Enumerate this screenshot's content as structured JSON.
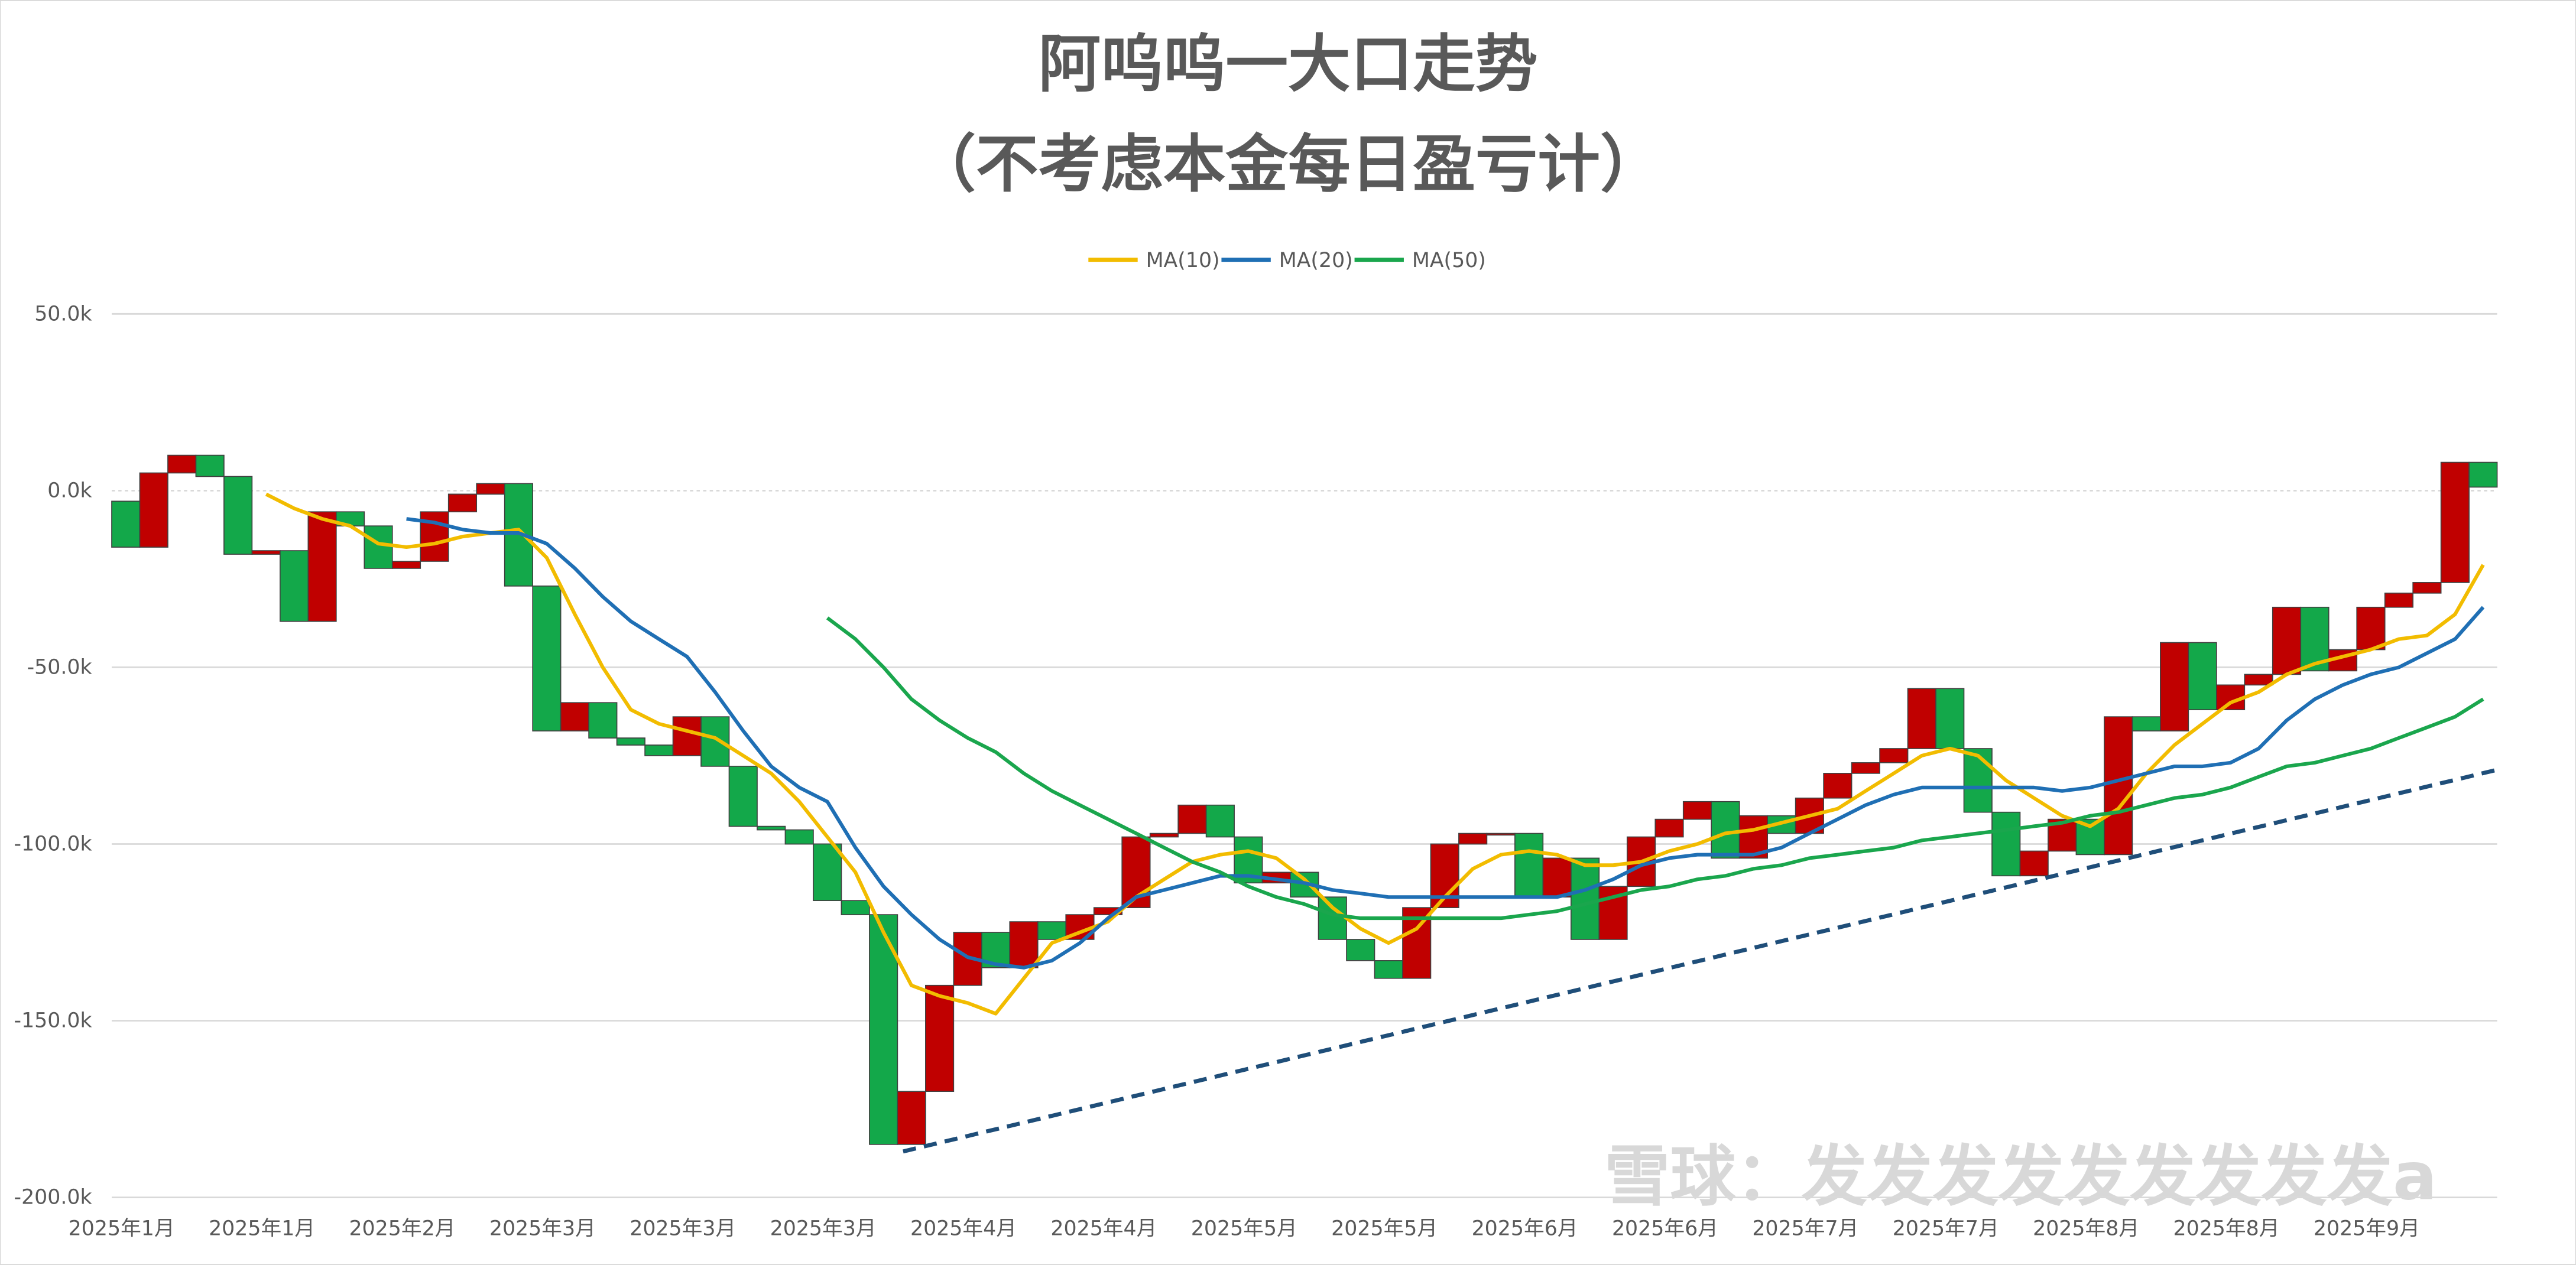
{
  "chart_data": {
    "type": "candlestick",
    "title": "阿呜呜一大口走势",
    "subtitle": "（不考虑本金每日盈亏计）",
    "watermark": "雪球：发发发发发发发发发a",
    "categories": [
      "2025年1月",
      null,
      null,
      null,
      null,
      "2025年1月",
      null,
      null,
      null,
      null,
      "2025年2月",
      null,
      null,
      null,
      null,
      "2025年3月",
      null,
      null,
      null,
      null,
      "2025年3月",
      null,
      null,
      null,
      null,
      "2025年3月",
      null,
      null,
      null,
      null,
      "2025年4月",
      null,
      null,
      null,
      null,
      "2025年4月",
      null,
      null,
      null,
      null,
      "2025年5月",
      null,
      null,
      null,
      null,
      "2025年5月",
      null,
      null,
      null,
      null,
      "2025年6月",
      null,
      null,
      null,
      null,
      "2025年6月",
      null,
      null,
      null,
      null,
      "2025年7月",
      null,
      null,
      null,
      null,
      "2025年7月",
      null,
      null,
      null,
      null,
      "2025年8月",
      null,
      null,
      null,
      null,
      "2025年8月",
      null,
      null,
      null,
      null,
      "2025年9月",
      null,
      null,
      null,
      null
    ],
    "open": [
      -3000,
      -16000,
      5000,
      10000,
      4000,
      -18000,
      -17000,
      -37000,
      -6000,
      -10000,
      -22000,
      -20000,
      -6000,
      -1000,
      2000,
      -27000,
      -68000,
      -60000,
      -70000,
      -72000,
      -75000,
      -64000,
      -78000,
      -95000,
      -96000,
      -100000,
      -116000,
      -120000,
      -185000,
      -170000,
      -140000,
      -125000,
      -135000,
      -122000,
      -127000,
      -120000,
      -118000,
      -98000,
      -97000,
      -89000,
      -98000,
      -111000,
      -108000,
      -115000,
      -127000,
      -133000,
      -138000,
      -118000,
      -100000,
      -97000,
      -97000,
      -115000,
      -104000,
      -127000,
      -112000,
      -98000,
      -93000,
      -88000,
      -104000,
      -92000,
      -97000,
      -87000,
      -80000,
      -77000,
      -73000,
      -56000,
      -73000,
      -91000,
      -109000,
      -102000,
      -93000,
      -103000,
      -64000,
      -68000,
      -43000,
      -62000,
      -55000,
      -52000,
      -33000,
      -51000,
      -45000,
      -33000,
      -29000,
      -26000,
      8000
    ],
    "close": [
      -16000,
      5000,
      10000,
      4000,
      -18000,
      -17000,
      -37000,
      -6000,
      -10000,
      -22000,
      -20000,
      -6000,
      -1000,
      2000,
      -27000,
      -68000,
      -60000,
      -70000,
      -72000,
      -75000,
      -64000,
      -78000,
      -95000,
      -96000,
      -100000,
      -116000,
      -120000,
      -185000,
      -170000,
      -140000,
      -125000,
      -135000,
      -122000,
      -127000,
      -120000,
      -118000,
      -98000,
      -97000,
      -89000,
      -98000,
      -111000,
      -108000,
      -115000,
      -127000,
      -133000,
      -138000,
      -118000,
      -100000,
      -97000,
      -97000,
      -115000,
      -104000,
      -127000,
      -112000,
      -98000,
      -93000,
      -88000,
      -104000,
      -92000,
      -97000,
      -87000,
      -80000,
      -77000,
      -73000,
      -56000,
      -73000,
      -91000,
      -109000,
      -102000,
      -93000,
      -103000,
      -64000,
      -68000,
      -43000,
      -62000,
      -55000,
      -52000,
      -33000,
      -51000,
      -45000,
      -33000,
      -29000,
      -26000,
      8000,
      1000
    ],
    "up_color": "#c00000",
    "down_color": "#13a84a",
    "series": [
      {
        "name": "MA(10)",
        "color": "#f2bc00",
        "values": [
          null,
          null,
          null,
          null,
          null,
          -1000,
          -5000,
          -8000,
          -10000,
          -15000,
          -16000,
          -15000,
          -13000,
          -12000,
          -11000,
          -19000,
          -35000,
          -50000,
          -62000,
          -66000,
          -68000,
          -70000,
          -75000,
          -80000,
          -88000,
          -98000,
          -108000,
          -125000,
          -140000,
          -143000,
          -145000,
          -148000,
          -138000,
          -128000,
          -125000,
          -122000,
          -115000,
          -110000,
          -105000,
          -103000,
          -102000,
          -104000,
          -110000,
          -118000,
          -124000,
          -128000,
          -124000,
          -115000,
          -107000,
          -103000,
          -102000,
          -103000,
          -106000,
          -106000,
          -105000,
          -102000,
          -100000,
          -97000,
          -96000,
          -94000,
          -92000,
          -90000,
          -85000,
          -80000,
          -75000,
          -73000,
          -75000,
          -82000,
          -87000,
          -92000,
          -95000,
          -90000,
          -80000,
          -72000,
          -66000,
          -60000,
          -57000,
          -52000,
          -49000,
          -47000,
          -45000,
          -42000,
          -41000,
          -35000,
          -21000
        ]
      },
      {
        "name": "MA(20)",
        "color": "#1f6fb4",
        "values": [
          null,
          null,
          null,
          null,
          null,
          null,
          null,
          null,
          null,
          null,
          -8000,
          -9000,
          -11000,
          -12000,
          -12000,
          -15000,
          -22000,
          -30000,
          -37000,
          -42000,
          -47000,
          -57000,
          -68000,
          -78000,
          -84000,
          -88000,
          -101000,
          -112000,
          -120000,
          -127000,
          -132000,
          -134000,
          -135000,
          -133000,
          -128000,
          -121000,
          -115000,
          -113000,
          -111000,
          -109000,
          -109000,
          -110000,
          -111000,
          -113000,
          -114000,
          -115000,
          -115000,
          -115000,
          -115000,
          -115000,
          -115000,
          -115000,
          -113000,
          -110000,
          -106000,
          -104000,
          -103000,
          -103000,
          -103000,
          -101000,
          -97000,
          -93000,
          -89000,
          -86000,
          -84000,
          -84000,
          -84000,
          -84000,
          -84000,
          -85000,
          -84000,
          -82000,
          -80000,
          -78000,
          -78000,
          -77000,
          -73000,
          -65000,
          -59000,
          -55000,
          -52000,
          -50000,
          -46000,
          -42000,
          -33000
        ]
      },
      {
        "name": "MA(50)",
        "color": "#1aa64d",
        "values": [
          null,
          null,
          null,
          null,
          null,
          null,
          null,
          null,
          null,
          null,
          null,
          null,
          null,
          null,
          null,
          null,
          null,
          null,
          null,
          null,
          null,
          null,
          null,
          null,
          null,
          -36000,
          -42000,
          -50000,
          -59000,
          -65000,
          -70000,
          -74000,
          -80000,
          -85000,
          -89000,
          -93000,
          -97000,
          -101000,
          -105000,
          -108000,
          -112000,
          -115000,
          -117000,
          -120000,
          -121000,
          -121000,
          -121000,
          -121000,
          -121000,
          -121000,
          -120000,
          -119000,
          -117000,
          -115000,
          -113000,
          -112000,
          -110000,
          -109000,
          -107000,
          -106000,
          -104000,
          -103000,
          -102000,
          -101000,
          -99000,
          -98000,
          -97000,
          -96000,
          -95000,
          -94000,
          -92000,
          -91000,
          -89000,
          -87000,
          -86000,
          -84000,
          -81000,
          -78000,
          -77000,
          -75000,
          -73000,
          -70000,
          -67000,
          -64000,
          -59000
        ]
      }
    ],
    "trendline": {
      "from": [
        28.2,
        -187000
      ],
      "to": [
        85,
        -79000
      ],
      "color": "#1f4e79"
    },
    "ylim": [
      -200000,
      50000
    ],
    "yticks": [
      {
        "value": 50000,
        "label": "50.0k"
      },
      {
        "value": 0,
        "label": "0.0k"
      },
      {
        "value": -50000,
        "label": "-50.0k"
      },
      {
        "value": -100000,
        "label": "-100.0k"
      },
      {
        "value": -150000,
        "label": "-150.0k"
      },
      {
        "value": -200000,
        "label": "-200.0k"
      }
    ],
    "grid": true,
    "legend": "top"
  }
}
